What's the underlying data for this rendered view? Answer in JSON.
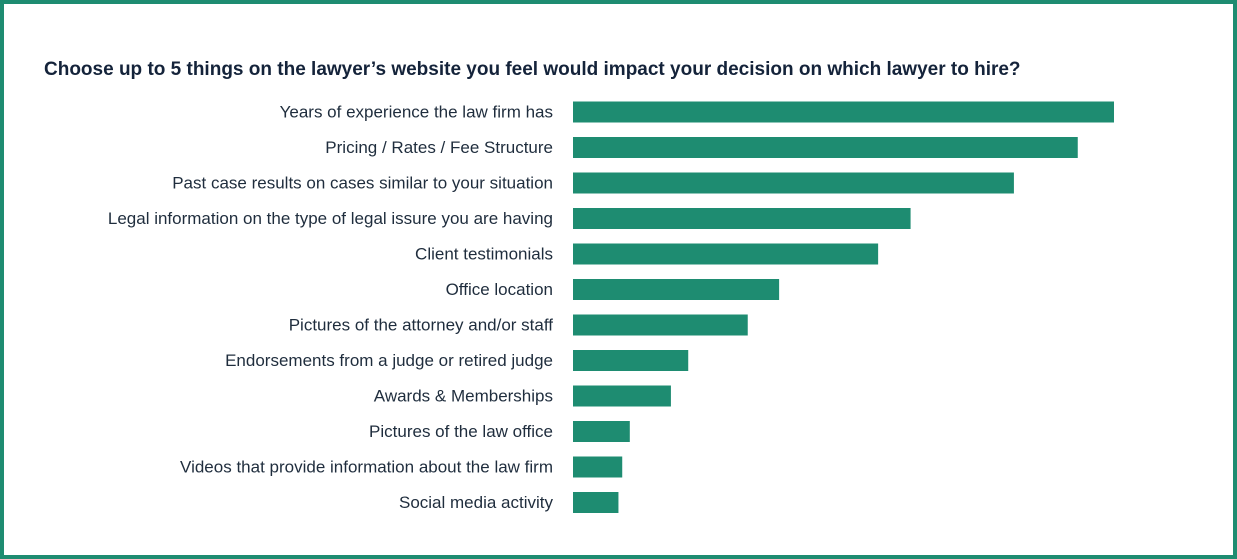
{
  "chart_data": {
    "type": "bar",
    "orientation": "horizontal",
    "title": "Choose up to 5 things on the lawyer’s website you feel would impact your decision on which lawyer to hire?",
    "categories": [
      "Years of experience the law firm has",
      "Pricing / Rates / Fee Structure",
      "Past case results on cases similar to your situation",
      "Legal information on the type of legal issure you are having",
      "Client testimonials",
      "Office location",
      "Pictures of the attorney and/or staff",
      "Endorsements from a judge or retired judge",
      "Awards & Memberships",
      "Pictures of the law office",
      "Videos that provide information about the law firm",
      "Social media activity"
    ],
    "values": [
      100,
      93.3,
      81.5,
      62.4,
      56.4,
      38.1,
      32.3,
      21.3,
      18.1,
      10.5,
      9.1,
      8.4
    ],
    "xlim": [
      0,
      100
    ],
    "bar_color": "#1e8c71",
    "grid": false,
    "legend": "none"
  }
}
